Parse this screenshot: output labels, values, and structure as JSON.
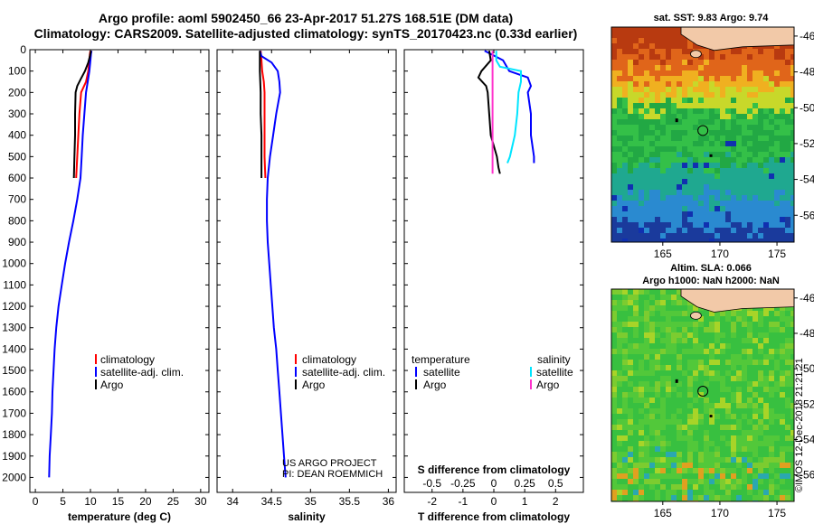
{
  "title": {
    "line1": "Argo profile: aoml 5902450_66 23-Apr-2017 51.27S 168.51E (DM data)",
    "line2": "Climatology: CARS2009. Satellite-adjusted climatology: synTS_20170423.nc (0.33d earlier)"
  },
  "colors": {
    "climatology": "#ff0000",
    "satellite_adj": "#0000ff",
    "argo": "#000000",
    "sat_cyan": "#00e5ff",
    "magenta": "#ff33cc"
  },
  "depth_axis": {
    "ticks": [
      0,
      100,
      200,
      300,
      400,
      500,
      600,
      700,
      800,
      900,
      1000,
      1100,
      1200,
      1300,
      1400,
      1500,
      1600,
      1700,
      1800,
      1900,
      2000
    ],
    "range": [
      0,
      2070
    ]
  },
  "chart_data": [
    {
      "type": "line",
      "name": "temperature",
      "xlabel": "temperature (deg C)",
      "xlim": [
        -1,
        31.5
      ],
      "xticks": [
        0,
        5,
        10,
        15,
        20,
        25,
        30
      ],
      "legend": [
        "climatology",
        "satellite-adj. clim.",
        "Argo"
      ],
      "series": [
        {
          "name": "climatology",
          "color_key": "climatology",
          "depth": [
            5,
            20,
            50,
            100,
            150,
            200,
            300,
            400,
            500,
            600
          ],
          "values": [
            10.0,
            9.9,
            9.8,
            9.6,
            9.2,
            8.3,
            8.0,
            7.8,
            7.6,
            7.4
          ]
        },
        {
          "name": "satellite-adj. clim.",
          "color_key": "satellite_adj",
          "depth": [
            5,
            20,
            50,
            100,
            150,
            200,
            300,
            400,
            500,
            600,
            700,
            800,
            900,
            1000,
            1100,
            1200,
            1300,
            1400,
            1500,
            1600,
            1700,
            1800,
            1900,
            2000
          ],
          "values": [
            10.2,
            10.1,
            10.0,
            9.8,
            9.5,
            9.2,
            8.9,
            8.6,
            8.4,
            8.2,
            7.6,
            6.9,
            6.1,
            5.4,
            4.8,
            4.2,
            3.8,
            3.5,
            3.3,
            3.1,
            3.0,
            2.8,
            2.6,
            2.5
          ]
        },
        {
          "name": "Argo",
          "color_key": "argo",
          "depth": [
            5,
            30,
            60,
            100,
            140,
            170,
            200,
            300,
            400,
            500,
            600
          ],
          "values": [
            10.1,
            9.9,
            9.6,
            9.0,
            8.2,
            7.6,
            7.3,
            7.2,
            7.2,
            7.1,
            7.0
          ]
        }
      ]
    },
    {
      "type": "line",
      "name": "salinity",
      "xlabel": "salinity",
      "xlim": [
        33.8,
        36.1
      ],
      "xticks": [
        34,
        34.5,
        35,
        35.5,
        36
      ],
      "legend": [
        "climatology",
        "satellite-adj. clim.",
        "Argo"
      ],
      "annotation": [
        "US ARGO PROJECT",
        "PI: DEAN ROEMMICH"
      ],
      "series": [
        {
          "name": "climatology",
          "color_key": "climatology",
          "depth": [
            5,
            50,
            100,
            150,
            200,
            300,
            400,
            500,
            600
          ],
          "values": [
            34.36,
            34.37,
            34.38,
            34.4,
            34.41,
            34.41,
            34.41,
            34.41,
            34.42
          ]
        },
        {
          "name": "satellite-adj. clim.",
          "color_key": "satellite_adj",
          "depth": [
            5,
            30,
            60,
            100,
            150,
            200,
            300,
            400,
            500,
            600,
            700,
            800,
            900,
            1000,
            1100,
            1200,
            1300,
            1400,
            1500,
            1600,
            1700,
            1800,
            1900,
            2000
          ],
          "values": [
            34.35,
            34.37,
            34.5,
            34.58,
            34.6,
            34.61,
            34.56,
            34.52,
            34.48,
            34.45,
            34.44,
            34.44,
            34.45,
            34.47,
            34.49,
            34.51,
            34.53,
            34.56,
            34.58,
            34.6,
            34.62,
            34.64,
            34.66,
            34.68
          ]
        },
        {
          "name": "Argo",
          "color_key": "argo",
          "depth": [
            5,
            100,
            200,
            300,
            400,
            500,
            600
          ],
          "values": [
            34.35,
            34.35,
            34.36,
            34.36,
            34.37,
            34.37,
            34.37
          ]
        }
      ]
    },
    {
      "type": "line",
      "name": "differences",
      "xlabel": "T difference from climatology",
      "xlabel_top": "S difference from climatology",
      "xlim": [
        -2.9,
        2.9
      ],
      "xticks": [
        -2,
        -1,
        0,
        1,
        2
      ],
      "xticks_top": [
        -0.5,
        -0.25,
        0,
        0.25,
        0.5
      ],
      "legend_left_title": "temperature",
      "legend_right_title": "salinity",
      "legend_left": [
        "satellite",
        "Argo"
      ],
      "legend_right": [
        "satellite",
        "Argo"
      ],
      "series": [
        {
          "name": "temperature satellite",
          "color_key": "satellite_adj",
          "axis": "T",
          "depth": [
            5,
            50,
            100,
            130,
            170,
            200,
            300,
            400,
            500,
            530
          ],
          "values": [
            -0.3,
            0.3,
            0.5,
            1.1,
            1.2,
            1.1,
            1.2,
            1.2,
            1.3,
            1.3
          ]
        },
        {
          "name": "temperature Argo",
          "color_key": "argo",
          "axis": "T",
          "depth": [
            5,
            50,
            100,
            130,
            170,
            200,
            300,
            400,
            450,
            500,
            550,
            580
          ],
          "values": [
            -0.15,
            -0.1,
            -0.4,
            -0.5,
            -0.25,
            -0.2,
            -0.15,
            -0.1,
            0.0,
            0.1,
            0.15,
            0.2
          ]
        },
        {
          "name": "salinity satellite",
          "color_key": "sat_cyan",
          "axis": "S",
          "depth": [
            5,
            50,
            80,
            100,
            150,
            200,
            300,
            400,
            500,
            530
          ],
          "values": [
            0.02,
            0.02,
            0.05,
            0.22,
            0.22,
            0.2,
            0.19,
            0.17,
            0.13,
            0.11
          ]
        },
        {
          "name": "salinity Argo",
          "color_key": "magenta",
          "axis": "S",
          "depth": [
            5,
            100,
            200,
            300,
            400,
            500,
            580
          ],
          "values": [
            -0.01,
            -0.01,
            -0.01,
            -0.01,
            -0.01,
            -0.01,
            -0.01
          ]
        }
      ]
    },
    {
      "type": "heatmap",
      "name": "sst map",
      "title": "sat. SST: 9.83 Argo: 9.74",
      "lon_range": [
        160.5,
        176.5
      ],
      "lat_range": [
        -57.5,
        -45.5
      ],
      "xticks": [
        165,
        170,
        175
      ],
      "yticks": [
        -46,
        -48,
        -50,
        -52,
        -54,
        -56
      ],
      "argo_position": {
        "lon": 168.51,
        "lat": -51.27
      }
    },
    {
      "type": "heatmap",
      "name": "sla map",
      "title_line1": "Altim. SLA: 0.066",
      "title_line2": "Argo h1000: NaN h2000: NaN",
      "lon_range": [
        160.5,
        176.5
      ],
      "lat_range": [
        -57.5,
        -45.5
      ],
      "xticks": [
        165,
        170,
        175
      ],
      "yticks": [
        -46,
        -48,
        -50,
        -52,
        -54,
        -56
      ],
      "argo_position": {
        "lon": 168.51,
        "lat": -51.27
      }
    }
  ],
  "credit": "©IMOS 12-Dec-2018 21:21:21"
}
